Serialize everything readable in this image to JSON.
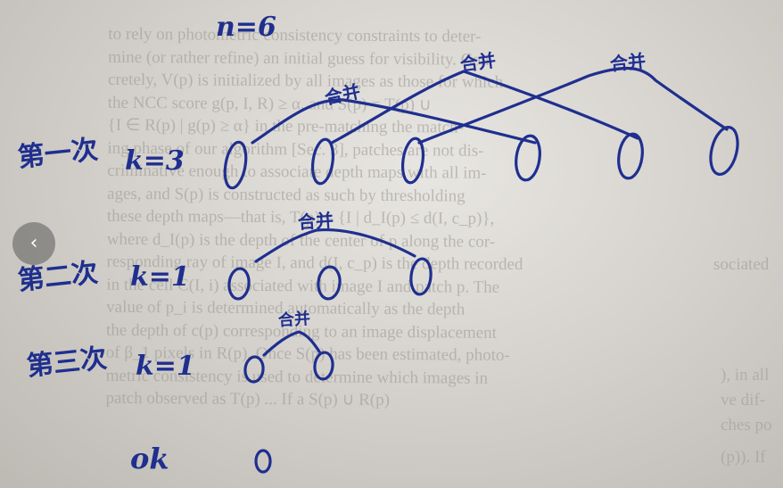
{
  "image": {
    "printed_lines": [
      "to rely on photometric consistency constraints to deter-",
      "mine (or rather refine) an initial guess for visibility. Con-",
      "cretely, V(p) is initialized by all images as those for which",
      "the NCC score g(p, I, R) ≥ α, and S(p) = T(p) ∪",
      "{I ∈ R(p) | g(p) ≥ α} in the pre-matching the match-",
      "ing phase of our algorithm [Sec. 3], patches are not dis-",
      "criminative enough to associate depth maps with all im-",
      "ages, and S(p) is constructed as such by thresholding",
      "these depth maps—that is, T(p) = {I | d_I(p) ≤ d(I, c_p)},",
      "where d_I(p) is the depth of the center of p along the cor-",
      "responding ray of image I, and d(I, c_p) is the depth recorded",
      "in the cell C(I, i) associated with image I and patch p. The",
      "value of p_i is determined automatically as the depth",
      "the depth of c(p) corresponding to an image displacement",
      "of β_1 pixels in R(p). Once S(p) has been estimated, photo-",
      "metric consistency is used to determine which images in",
      "patch observed as T(p) ... If a S(p) ∪ R(p)"
    ],
    "margin_word": "sociated",
    "margin_right_1": "), in all",
    "margin_right_2": "ve dif-",
    "margin_right_3": "ches po",
    "margin_right_4": "(p)). If",
    "handwriting": {
      "n_label": "n=6",
      "merge_label": "合并",
      "row1_label": "第一次",
      "row1_k": "k=3",
      "row2_label": "第二次",
      "row2_k": "k=1",
      "row3_label": "第三次",
      "row3_k": "k=1",
      "ok_label": "ok"
    },
    "ink_color": "#1f2f8f",
    "nav": {
      "back_icon": "chevron-left-icon",
      "back_glyph": "‹"
    }
  }
}
